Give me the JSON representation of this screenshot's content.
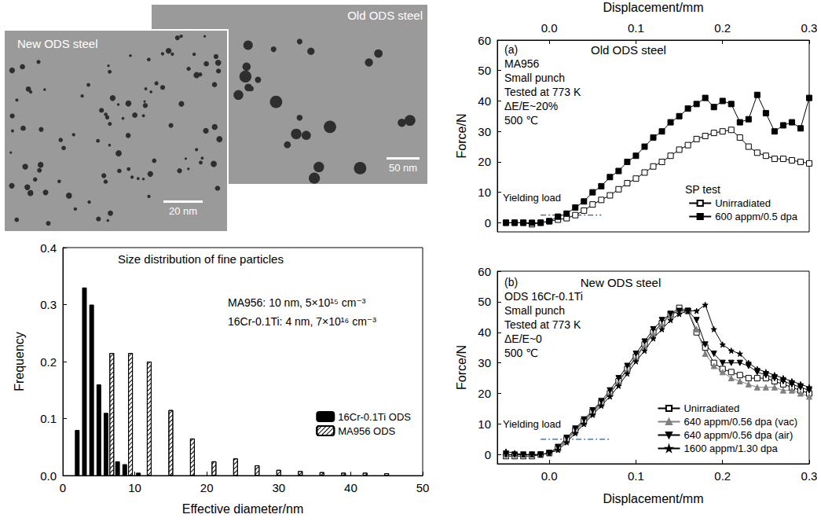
{
  "images": [
    {
      "label": "Old ODS steel",
      "scale_bar": "50 nm"
    },
    {
      "label": "New ODS steel",
      "scale_bar": "20 nm"
    }
  ],
  "chart_data": [
    {
      "type": "bar",
      "title": "Size distribution of fine particles",
      "annotations": [
        "MA956: 10 nm, 5×10¹⁵ cm⁻³",
        "16Cr-0.1Ti: 4 nm, 7×10¹⁶ cm⁻³"
      ],
      "x_label": "Effective diameter/nm",
      "y_label": "Frequency",
      "xlim": [
        0,
        50
      ],
      "xticks": [
        0,
        10,
        20,
        30,
        40,
        50
      ],
      "ylim": [
        0,
        0.4
      ],
      "yticks": [
        {
          "value": 0,
          "label": "0.0"
        },
        0.1,
        0.2,
        0.3,
        0.4
      ],
      "grid": false,
      "legend": "lower right",
      "series": [
        {
          "name": "16Cr-0.1Ti ODS",
          "color": "#000000",
          "marker": "solid",
          "x": [
            2,
            3,
            4,
            5,
            6,
            7.6,
            8.6,
            10.5
          ],
          "values": [
            0.08,
            0.33,
            0.3,
            0.16,
            0.11,
            0.025,
            0.02,
            0.005
          ]
        },
        {
          "name": "MA956 ODS",
          "color": "#ffffff",
          "marker": "hatched",
          "x": [
            6.8,
            9.4,
            12,
            15,
            18,
            21,
            24,
            27,
            30,
            33,
            36,
            39,
            42,
            45
          ],
          "values": [
            0.215,
            0.215,
            0.2,
            0.115,
            0.065,
            0.025,
            0.03,
            0.018,
            0.01,
            0.008,
            0.006,
            0.005,
            0.005,
            0.004
          ]
        }
      ]
    },
    {
      "type": "line",
      "title": "Old ODS steel",
      "annotations": [
        "(a)",
        "MA956",
        "Small punch",
        "Tested at 773 K",
        "ΔE/E~20%",
        "500 ℃",
        "SP test"
      ],
      "x_label": "Displacement/mm",
      "y_label": "Force/N",
      "xlim": [
        -0.06,
        0.3
      ],
      "xticks": [
        {
          "value": 0,
          "label": "0.0"
        },
        0.1,
        0.2,
        0.3
      ],
      "ylim": [
        -3,
        60
      ],
      "yticks": [
        0,
        10,
        20,
        30,
        40,
        50,
        60
      ],
      "grid": false,
      "legend": "lower right",
      "reference_line": {
        "label": "Yielding load",
        "x": [
          -0.01,
          0.06
        ],
        "y": 2.5,
        "color": "#2a5caa",
        "line_style": "dashdot"
      },
      "x": [
        -0.05,
        -0.04,
        -0.03,
        -0.02,
        -0.01,
        0,
        0.01,
        0.02,
        0.03,
        0.04,
        0.05,
        0.06,
        0.07,
        0.08,
        0.09,
        0.1,
        0.11,
        0.12,
        0.13,
        0.14,
        0.15,
        0.16,
        0.17,
        0.18,
        0.19,
        0.2,
        0.21,
        0.22,
        0.23,
        0.24,
        0.25,
        0.26,
        0.27,
        0.28,
        0.29,
        0.3
      ],
      "series": [
        {
          "name": "Unirradiated",
          "color": "#000000",
          "marker": "square-open",
          "values": [
            0,
            0,
            0,
            -0.5,
            0,
            0.5,
            1,
            1.5,
            2.5,
            4,
            6,
            7.5,
            9,
            11,
            13,
            14.5,
            16.5,
            18.5,
            20,
            22,
            24,
            25.5,
            27.5,
            28.5,
            29.5,
            30,
            30.5,
            28,
            25,
            23,
            22,
            21,
            21,
            20.5,
            20,
            19.5
          ]
        },
        {
          "name": "600 appm/0.5 dpa",
          "color": "#000000",
          "marker": "square",
          "values": [
            0,
            0,
            0,
            0,
            0,
            0.5,
            2,
            3,
            5,
            7,
            10,
            12,
            15,
            17,
            20,
            22,
            25,
            28,
            30,
            33,
            35,
            37.5,
            39,
            41,
            38,
            40,
            39,
            33,
            34,
            42,
            36,
            30,
            32,
            33,
            31,
            41
          ]
        }
      ]
    },
    {
      "type": "line",
      "title": "New ODS steel",
      "annotations": [
        "(b)",
        "ODS 16Cr-0.1Ti",
        "Small punch",
        "Tested at 773 K",
        "ΔE/E~0",
        "500 ℃"
      ],
      "x_label": "Displacement/mm",
      "y_label": "Force/N",
      "xlim": [
        -0.06,
        0.3
      ],
      "xticks": [
        {
          "value": 0,
          "label": "0.0"
        },
        0.1,
        0.2,
        0.3
      ],
      "ylim": [
        -3,
        60
      ],
      "yticks": [
        0,
        10,
        20,
        30,
        40,
        50,
        60
      ],
      "grid": false,
      "legend": "lower right",
      "reference_line": {
        "label": "Yielding load",
        "x": [
          -0.01,
          0.07
        ],
        "y": 5,
        "color": "#2a5caa",
        "line_style": "dashdot"
      },
      "x": [
        -0.05,
        -0.04,
        -0.03,
        -0.02,
        -0.01,
        0,
        0.01,
        0.02,
        0.03,
        0.04,
        0.05,
        0.06,
        0.07,
        0.08,
        0.09,
        0.1,
        0.11,
        0.12,
        0.13,
        0.14,
        0.15,
        0.16,
        0.17,
        0.18,
        0.19,
        0.2,
        0.21,
        0.22,
        0.23,
        0.24,
        0.25,
        0.26,
        0.27,
        0.28,
        0.29,
        0.3
      ],
      "series": [
        {
          "name": "Unirradiated",
          "color": "#000000",
          "marker": "square-open",
          "values": [
            -0.5,
            -0.5,
            -0.5,
            -0.5,
            0,
            0.5,
            2,
            5,
            8,
            11,
            14,
            17,
            20,
            24,
            28,
            32,
            36,
            40,
            43,
            46,
            48,
            47,
            40,
            35,
            30,
            28,
            27,
            26,
            25,
            25,
            25,
            24,
            23,
            22,
            21,
            20
          ]
        },
        {
          "name": "640 appm/0.56 dpa (vac)",
          "color": "#808080",
          "marker": "triangle",
          "values": [
            0,
            0,
            0,
            0,
            0,
            0.5,
            2,
            4.5,
            7.5,
            10.5,
            13.5,
            16.5,
            20,
            23.5,
            27.5,
            31.5,
            35.5,
            39.5,
            42.5,
            45.5,
            47,
            47,
            41,
            33,
            29,
            27,
            25,
            24,
            23,
            22,
            22,
            22,
            21,
            21,
            20,
            19
          ]
        },
        {
          "name": "640 appm/0.56 dpa (air)",
          "color": "#000000",
          "marker": "triangle-down",
          "values": [
            0,
            0,
            0,
            0,
            0,
            0.5,
            2.5,
            5.5,
            8.5,
            11.5,
            14.5,
            17.5,
            21,
            25,
            29,
            33,
            37,
            41,
            44,
            46,
            47,
            47,
            44,
            36,
            33,
            30,
            30,
            30,
            29,
            27,
            26,
            25,
            24,
            23,
            22,
            21
          ]
        },
        {
          "name": "1600 appm/1.30 dpa",
          "color": "#000000",
          "marker": "star",
          "values": [
            1,
            0.5,
            0,
            0,
            0,
            0.5,
            1.5,
            4,
            7,
            10,
            13,
            16,
            19,
            22.5,
            26.5,
            30.5,
            34,
            38,
            41,
            44,
            46,
            47,
            47,
            49,
            41,
            36,
            34,
            33,
            30,
            28,
            27,
            26,
            25,
            24,
            23,
            22
          ]
        }
      ]
    }
  ]
}
